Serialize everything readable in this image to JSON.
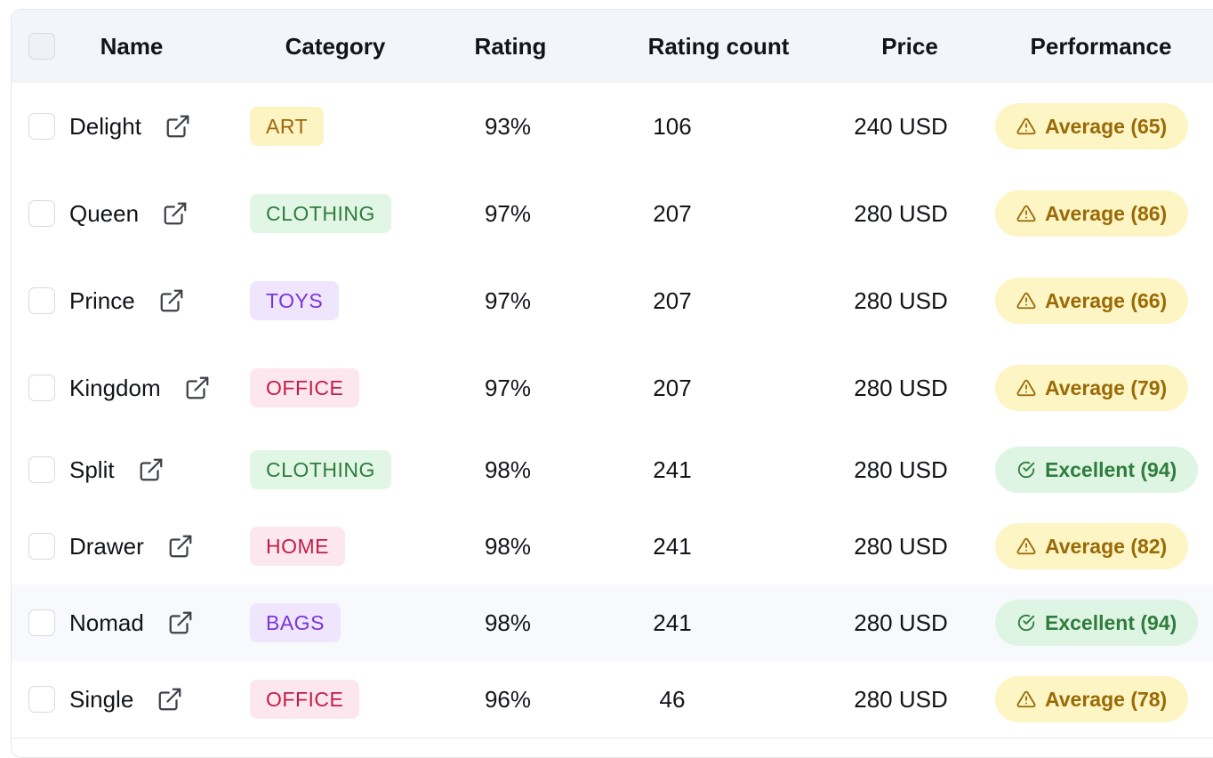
{
  "columns": {
    "name": "Name",
    "category": "Category",
    "rating": "Rating",
    "rating_count": "Rating count",
    "price": "Price",
    "performance": "Performance"
  },
  "icons": {
    "external_link": "external-link-icon",
    "warning": "warning-triangle-icon",
    "check": "check-circle-icon"
  },
  "colors": {
    "header_bg": "#f2f5f9",
    "warning_bg": "#fdf5c4",
    "warning_fg": "#9a6a06",
    "excellent_bg": "#dff5e4",
    "excellent_fg": "#2f7d3c"
  },
  "categories": {
    "ART": {
      "bg": "#fdf4c3",
      "fg": "#a0660a"
    },
    "CLOTHING": {
      "bg": "#e2f6e6",
      "fg": "#2f7d3c"
    },
    "TOYS": {
      "bg": "#efe6fd",
      "fg": "#7a35d9"
    },
    "OFFICE": {
      "bg": "#fde7ee",
      "fg": "#c21d4a"
    },
    "HOME": {
      "bg": "#fde7ee",
      "fg": "#c21d4a"
    },
    "BAGS": {
      "bg": "#efe6fd",
      "fg": "#7a35d9"
    }
  },
  "rows": [
    {
      "name": "Delight",
      "category": "ART",
      "rating": "93%",
      "rating_count": "106",
      "price": "240 USD",
      "performance": "Average (65)",
      "status": "average"
    },
    {
      "name": "Queen",
      "category": "CLOTHING",
      "rating": "97%",
      "rating_count": "207",
      "price": "280 USD",
      "performance": "Average (86)",
      "status": "average"
    },
    {
      "name": "Prince",
      "category": "TOYS",
      "rating": "97%",
      "rating_count": "207",
      "price": "280 USD",
      "performance": "Average (66)",
      "status": "average"
    },
    {
      "name": "Kingdom",
      "category": "OFFICE",
      "rating": "97%",
      "rating_count": "207",
      "price": "280 USD",
      "performance": "Average (79)",
      "status": "average"
    },
    {
      "name": "Split",
      "category": "CLOTHING",
      "rating": "98%",
      "rating_count": "241",
      "price": "280 USD",
      "performance": "Excellent (94)",
      "status": "excellent"
    },
    {
      "name": "Drawer",
      "category": "HOME",
      "rating": "98%",
      "rating_count": "241",
      "price": "280 USD",
      "performance": "Average (82)",
      "status": "average"
    },
    {
      "name": "Nomad",
      "category": "BAGS",
      "rating": "98%",
      "rating_count": "241",
      "price": "280 USD",
      "performance": "Excellent (94)",
      "status": "excellent",
      "hovered": true
    },
    {
      "name": "Single",
      "category": "OFFICE",
      "rating": "96%",
      "rating_count": "46",
      "price": "280 USD",
      "performance": "Average (78)",
      "status": "average"
    }
  ]
}
